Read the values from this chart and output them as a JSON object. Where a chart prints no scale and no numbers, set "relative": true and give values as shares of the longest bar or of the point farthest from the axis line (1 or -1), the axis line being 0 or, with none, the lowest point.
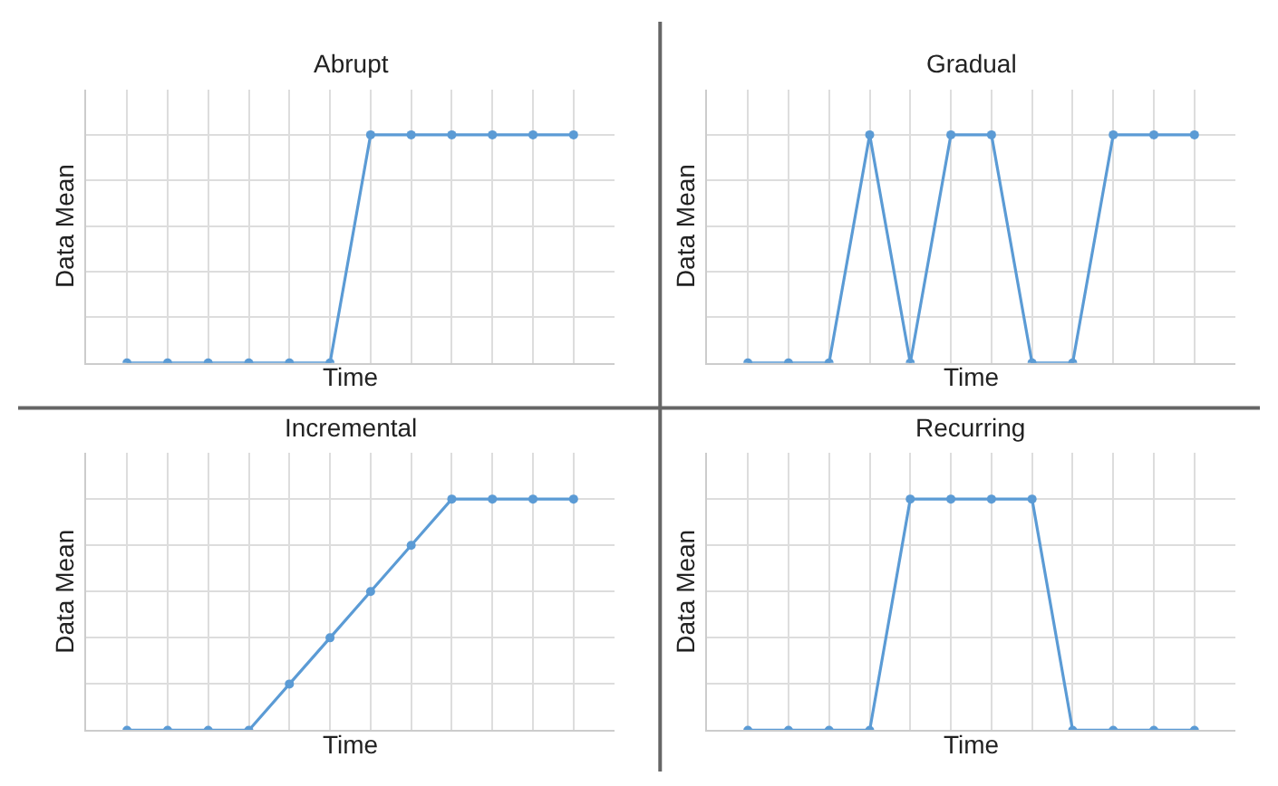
{
  "chart_data": [
    {
      "type": "line",
      "title": "Abrupt",
      "xlabel": "Time",
      "ylabel": "Data Mean",
      "relative": true,
      "grid": true,
      "marker": "circle",
      "line_style": "solid",
      "categories": [
        null,
        null,
        null,
        null,
        null,
        null,
        null,
        null,
        null,
        null,
        null,
        null
      ],
      "series": [
        {
          "color": "#5b9bd5",
          "values": [
            0,
            0,
            0,
            0,
            0,
            0,
            1,
            1,
            1,
            1,
            1,
            1
          ]
        }
      ]
    },
    {
      "type": "line",
      "title": "Gradual",
      "xlabel": "Time",
      "ylabel": "Data Mean",
      "relative": true,
      "grid": true,
      "marker": "circle",
      "line_style": "solid",
      "categories": [
        null,
        null,
        null,
        null,
        null,
        null,
        null,
        null,
        null,
        null,
        null,
        null
      ],
      "series": [
        {
          "color": "#5b9bd5",
          "values": [
            0,
            0,
            0,
            1,
            0,
            1,
            1,
            0,
            0,
            1,
            1,
            1
          ]
        }
      ]
    },
    {
      "type": "line",
      "title": "Incremental",
      "xlabel": "Time",
      "ylabel": "Data Mean",
      "relative": true,
      "grid": true,
      "marker": "circle",
      "line_style": "solid",
      "categories": [
        null,
        null,
        null,
        null,
        null,
        null,
        null,
        null,
        null,
        null,
        null,
        null
      ],
      "series": [
        {
          "color": "#5b9bd5",
          "values": [
            0,
            0,
            0,
            0,
            0.2,
            0.4,
            0.6,
            0.8,
            1,
            1,
            1,
            1
          ]
        }
      ]
    },
    {
      "type": "line",
      "title": "Recurring",
      "xlabel": "Time",
      "ylabel": "Data Mean",
      "relative": true,
      "grid": true,
      "marker": "circle",
      "line_style": "solid",
      "categories": [
        null,
        null,
        null,
        null,
        null,
        null,
        null,
        null,
        null,
        null,
        null,
        null
      ],
      "series": [
        {
          "color": "#5b9bd5",
          "values": [
            0,
            0,
            0,
            0,
            1,
            1,
            1,
            1,
            0,
            0,
            0,
            0
          ]
        }
      ]
    }
  ]
}
